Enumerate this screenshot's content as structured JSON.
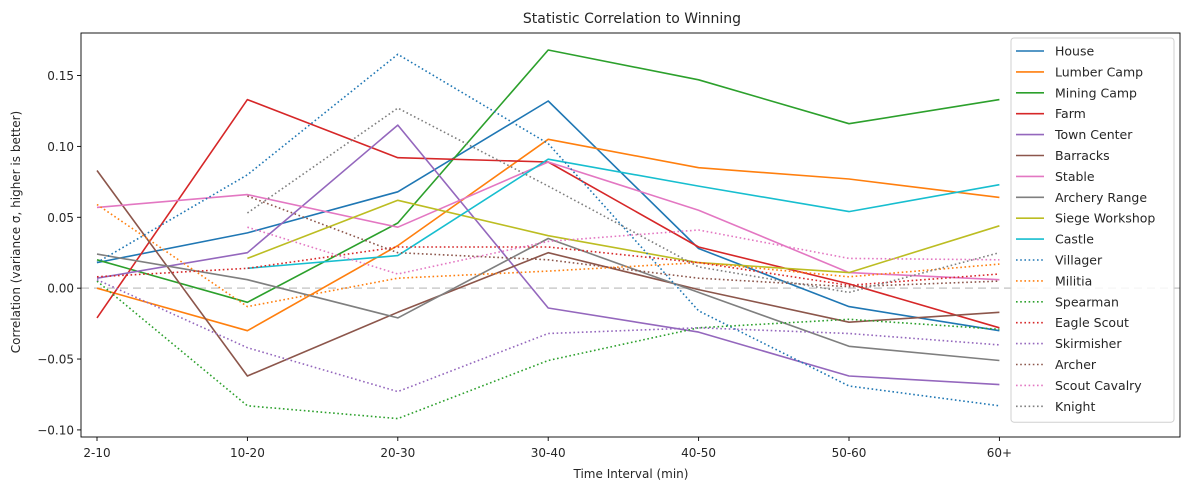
{
  "chart_data": {
    "type": "line",
    "title": "Statistic Correlation to Winning",
    "xlabel": "Time Interval (min)",
    "ylabel": "Correlation (variance σ, higher is better)",
    "categories": [
      "2-10",
      "10-20",
      "20-30",
      "30-40",
      "40-50",
      "50-60",
      "60+"
    ],
    "yticks": [
      "−0.10",
      "−0.05",
      "0.00",
      "0.05",
      "0.10",
      "0.15"
    ],
    "ylim": [
      -0.105,
      0.18
    ],
    "grid": false,
    "zero_line": true,
    "legend_position": "right",
    "series": [
      {
        "name": "House",
        "color": "#1f77b4",
        "style": "solid",
        "values": [
          0.018,
          0.039,
          0.068,
          0.132,
          0.028,
          -0.013,
          -0.03
        ]
      },
      {
        "name": "Lumber Camp",
        "color": "#ff7f0e",
        "style": "solid",
        "values": [
          0.0,
          -0.03,
          0.03,
          0.105,
          0.085,
          0.077,
          0.064
        ]
      },
      {
        "name": "Mining Camp",
        "color": "#2ca02c",
        "style": "solid",
        "values": [
          0.02,
          -0.01,
          0.046,
          0.168,
          0.147,
          0.116,
          0.133
        ]
      },
      {
        "name": "Farm",
        "color": "#d62728",
        "style": "solid",
        "values": [
          -0.021,
          0.133,
          0.092,
          0.089,
          0.029,
          0.003,
          -0.028
        ]
      },
      {
        "name": "Town Center",
        "color": "#9467bd",
        "style": "solid",
        "values": [
          0.007,
          0.025,
          0.115,
          -0.014,
          -0.031,
          -0.062,
          -0.068
        ]
      },
      {
        "name": "Barracks",
        "color": "#8c564b",
        "style": "solid",
        "values": [
          0.083,
          -0.062,
          -0.017,
          0.025,
          -0.001,
          -0.024,
          -0.017
        ]
      },
      {
        "name": "Stable",
        "color": "#e377c2",
        "style": "solid",
        "values": [
          0.057,
          0.066,
          0.043,
          0.089,
          0.055,
          0.011,
          0.006
        ]
      },
      {
        "name": "Archery Range",
        "color": "#7f7f7f",
        "style": "solid",
        "values": [
          0.024,
          0.006,
          -0.021,
          0.035,
          -0.003,
          -0.041,
          -0.051
        ]
      },
      {
        "name": "Siege Workshop",
        "color": "#bcbd22",
        "style": "solid",
        "values": [
          null,
          0.021,
          0.062,
          0.037,
          0.018,
          0.011,
          0.044
        ]
      },
      {
        "name": "Castle",
        "color": "#17becf",
        "style": "solid",
        "values": [
          null,
          0.014,
          0.023,
          0.091,
          0.072,
          0.054,
          0.073
        ]
      },
      {
        "name": "Villager",
        "color": "#1f77b4",
        "style": "dotted",
        "values": [
          0.018,
          0.08,
          0.165,
          0.102,
          -0.016,
          -0.069,
          -0.083
        ]
      },
      {
        "name": "Militia",
        "color": "#ff7f0e",
        "style": "dotted",
        "values": [
          0.059,
          -0.013,
          0.007,
          0.012,
          0.018,
          0.008,
          0.017
        ]
      },
      {
        "name": "Spearman",
        "color": "#2ca02c",
        "style": "dotted",
        "values": [
          0.005,
          -0.083,
          -0.092,
          -0.051,
          -0.028,
          -0.022,
          -0.029
        ]
      },
      {
        "name": "Eagle Scout",
        "color": "#d62728",
        "style": "dotted",
        "values": [
          0.008,
          0.014,
          0.029,
          0.029,
          0.018,
          0.002,
          0.01
        ]
      },
      {
        "name": "Skirmisher",
        "color": "#9467bd",
        "style": "dotted",
        "values": [
          0.006,
          -0.042,
          -0.073,
          -0.032,
          -0.028,
          -0.032,
          -0.04
        ]
      },
      {
        "name": "Archer",
        "color": "#8c564b",
        "style": "dotted",
        "values": [
          null,
          0.065,
          0.025,
          0.02,
          0.007,
          0.001,
          0.005
        ]
      },
      {
        "name": "Scout Cavalry",
        "color": "#e377c2",
        "style": "dotted",
        "values": [
          null,
          0.043,
          0.01,
          0.033,
          0.041,
          0.021,
          0.02
        ]
      },
      {
        "name": "Knight",
        "color": "#7f7f7f",
        "style": "dotted",
        "values": [
          null,
          0.053,
          0.127,
          0.072,
          0.015,
          -0.003,
          0.025
        ]
      }
    ]
  }
}
